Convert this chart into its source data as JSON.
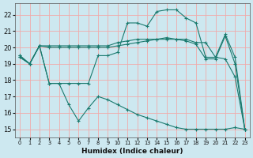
{
  "xlabel": "Humidex (Indice chaleur)",
  "bg_color": "#cde8f0",
  "grid_color": "#f0aaaa",
  "line_color": "#1a7a6e",
  "xlim": [
    -0.5,
    23.5
  ],
  "ylim": [
    14.5,
    22.7
  ],
  "x_ticks": [
    0,
    1,
    2,
    3,
    4,
    5,
    6,
    7,
    8,
    9,
    10,
    11,
    12,
    13,
    14,
    15,
    16,
    17,
    18,
    19,
    20,
    21,
    22,
    23
  ],
  "y_ticks": [
    15,
    16,
    17,
    18,
    19,
    20,
    21,
    22
  ],
  "line1_x": [
    0,
    1,
    2,
    3,
    4,
    5,
    6,
    7,
    8,
    9,
    10,
    11,
    12,
    13,
    14,
    15,
    16,
    17,
    18,
    19,
    20,
    21,
    22,
    23
  ],
  "line1_y": [
    19.4,
    19.0,
    20.1,
    20.1,
    20.1,
    20.1,
    20.1,
    20.1,
    20.1,
    20.1,
    20.3,
    20.4,
    20.5,
    20.5,
    20.5,
    20.6,
    20.5,
    20.5,
    20.3,
    20.3,
    19.4,
    20.8,
    19.4,
    15.0
  ],
  "line2_x": [
    0,
    1,
    2,
    3,
    4,
    5,
    6,
    7,
    8,
    9,
    10,
    11,
    12,
    13,
    14,
    15,
    16,
    17,
    18,
    19,
    20,
    21,
    22,
    23
  ],
  "line2_y": [
    19.4,
    19.0,
    20.1,
    20.0,
    20.0,
    20.0,
    20.0,
    20.0,
    20.0,
    20.0,
    20.1,
    20.2,
    20.3,
    20.4,
    20.5,
    20.5,
    20.5,
    20.4,
    20.2,
    19.3,
    19.3,
    20.7,
    19.0,
    15.0
  ],
  "line3_x": [
    0,
    1,
    2,
    3,
    4,
    5,
    6,
    7,
    8,
    9,
    10,
    11,
    12,
    13,
    14,
    15,
    16,
    17,
    18,
    19,
    20,
    21,
    22,
    23
  ],
  "line3_y": [
    19.5,
    19.0,
    20.1,
    17.8,
    17.8,
    17.8,
    17.8,
    17.8,
    19.5,
    19.5,
    19.7,
    21.5,
    21.5,
    21.3,
    22.2,
    22.3,
    22.3,
    21.8,
    21.5,
    19.4,
    19.4,
    19.3,
    18.2,
    15.0
  ],
  "line4_x": [
    0,
    1,
    2,
    3,
    4,
    5,
    6,
    7,
    8,
    9,
    10,
    11,
    12,
    13,
    14,
    15,
    16,
    17,
    18,
    19,
    20,
    21,
    22,
    23
  ],
  "line4_y": [
    19.5,
    19.0,
    20.1,
    17.8,
    17.8,
    16.5,
    15.5,
    16.3,
    17.0,
    16.8,
    16.5,
    16.2,
    15.9,
    15.7,
    15.5,
    15.3,
    15.1,
    15.0,
    15.0,
    15.0,
    15.0,
    15.0,
    15.1,
    15.0
  ]
}
